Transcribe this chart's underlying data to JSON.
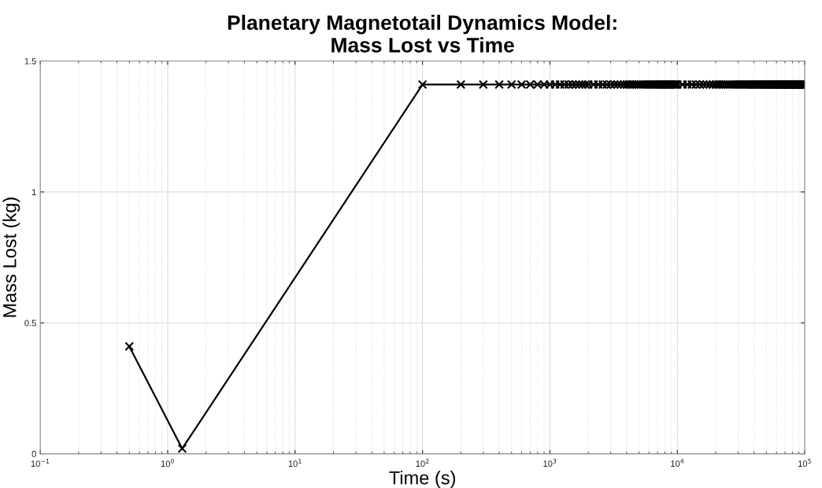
{
  "chart_data": {
    "type": "line",
    "title": "Planetary Magnetotail Dynamics Model:\nMass Lost vs Time",
    "xlabel": "Time (s)",
    "ylabel": "Mass Lost (kg)",
    "log": "x",
    "grid": true,
    "marker": "cross",
    "line_style": "solid",
    "xlim": [
      0.1,
      100000
    ],
    "xticks": [
      {
        "value": 0.1,
        "label": "10$^{−1}$"
      },
      {
        "value": 1,
        "label": "10$^{0}$"
      },
      {
        "value": 10,
        "label": "10$^{1}$"
      },
      {
        "value": 100,
        "label": "10$^{2}$"
      },
      {
        "value": 1000,
        "label": "10$^{3}$"
      },
      {
        "value": 10000,
        "label": "10$^{4}$"
      },
      {
        "value": 100000,
        "label": "10$^{5}$"
      }
    ],
    "ylim": [
      0,
      1.5
    ],
    "yticks": [
      0,
      0.5,
      1,
      1.5
    ],
    "series": [
      {
        "color": "#000000",
        "x": [
          0.5,
          1.3,
          100,
          200,
          300,
          400,
          500,
          600,
          700,
          800,
          900,
          1000,
          1100,
          1200,
          1300,
          1400,
          1500,
          1600,
          1700,
          1800,
          1900,
          2000,
          2200,
          2400,
          2600,
          2800,
          3000,
          3200,
          3400,
          3600,
          3800,
          4000,
          4200,
          4400,
          4600,
          4800,
          5000,
          5200,
          5400,
          5600,
          5800,
          6000,
          6200,
          6400,
          6600,
          6800,
          7000,
          7200,
          7400,
          7600,
          7800,
          8000,
          8200,
          8400,
          8600,
          8800,
          9000,
          9200,
          9400,
          9600,
          9800,
          10000,
          11000,
          12000,
          13000,
          14000,
          15000,
          16000,
          17000,
          18000,
          19000,
          20000,
          21000,
          22000,
          23000,
          24000,
          25000,
          26000,
          27000,
          28000,
          29000,
          30000,
          31000,
          32000,
          33000,
          34000,
          35000,
          36000,
          37000,
          38000,
          39000,
          40000,
          41000,
          42000,
          43000,
          44000,
          45000,
          46000,
          47000,
          48000,
          49000,
          50000,
          51000,
          52000,
          53000,
          54000,
          55000,
          56000,
          57000,
          58000,
          59000,
          60000,
          61000,
          62000,
          63000,
          64000,
          65000,
          66000,
          67000,
          68000,
          69000,
          70000,
          71000,
          72000,
          73000,
          74000,
          75000,
          76000,
          77000,
          78000,
          79000,
          80000,
          81000,
          82000,
          83000,
          84000,
          85000,
          86000,
          87000,
          88000,
          89000,
          90000,
          91000,
          92000,
          93000,
          94000,
          95000,
          96000,
          97000,
          98000,
          99000,
          100000
        ],
        "values": [
          0.41,
          0.02,
          1.41,
          1.41,
          1.41,
          1.41,
          1.41,
          1.41,
          1.41,
          1.41,
          1.41,
          1.41,
          1.41,
          1.41,
          1.41,
          1.41,
          1.41,
          1.41,
          1.41,
          1.41,
          1.41,
          1.41,
          1.41,
          1.41,
          1.41,
          1.41,
          1.41,
          1.41,
          1.41,
          1.41,
          1.41,
          1.41,
          1.41,
          1.41,
          1.41,
          1.41,
          1.41,
          1.41,
          1.41,
          1.41,
          1.41,
          1.41,
          1.41,
          1.41,
          1.41,
          1.41,
          1.41,
          1.41,
          1.41,
          1.41,
          1.41,
          1.41,
          1.41,
          1.41,
          1.41,
          1.41,
          1.41,
          1.41,
          1.41,
          1.41,
          1.41,
          1.41,
          1.41,
          1.41,
          1.41,
          1.41,
          1.41,
          1.41,
          1.41,
          1.41,
          1.41,
          1.41,
          1.41,
          1.41,
          1.41,
          1.41,
          1.41,
          1.41,
          1.41,
          1.41,
          1.41,
          1.41,
          1.41,
          1.41,
          1.41,
          1.41,
          1.41,
          1.41,
          1.41,
          1.41,
          1.41,
          1.41,
          1.41,
          1.41,
          1.41,
          1.41,
          1.41,
          1.41,
          1.41,
          1.41,
          1.41,
          1.41,
          1.41,
          1.41,
          1.41,
          1.41,
          1.41,
          1.41,
          1.41,
          1.41,
          1.41,
          1.41,
          1.41,
          1.41,
          1.41,
          1.41,
          1.41,
          1.41,
          1.41,
          1.41,
          1.41,
          1.41,
          1.41,
          1.41,
          1.41,
          1.41,
          1.41,
          1.41,
          1.41,
          1.41,
          1.41,
          1.41,
          1.41,
          1.41,
          1.41,
          1.41,
          1.41,
          1.41,
          1.41,
          1.41,
          1.41,
          1.41,
          1.41,
          1.41,
          1.41,
          1.41,
          1.41,
          1.41,
          1.41,
          1.41,
          1.41,
          1.41
        ]
      }
    ]
  }
}
